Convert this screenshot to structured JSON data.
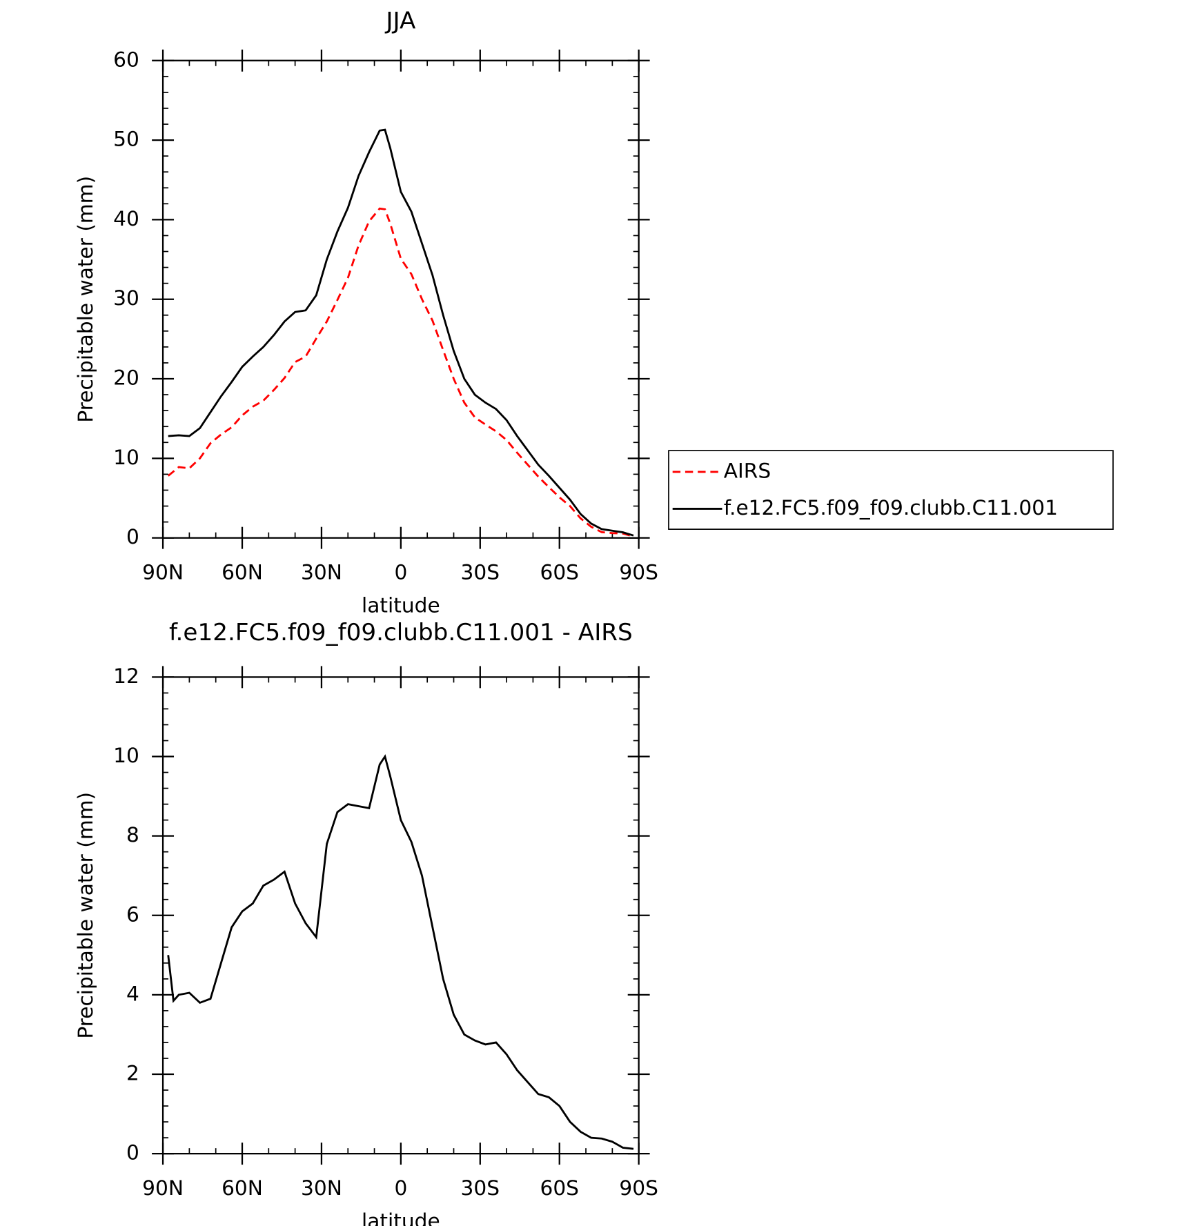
{
  "chart_data": [
    {
      "type": "line",
      "title": "JJA",
      "xlabel": "latitude",
      "ylabel": "Precipitable water (mm)",
      "x": [
        88,
        84,
        80,
        76,
        72,
        68,
        64,
        60,
        56,
        52,
        48,
        44,
        40,
        36,
        32,
        28,
        24,
        20,
        16,
        12,
        8,
        6,
        4,
        0,
        -4,
        -8,
        -12,
        -16,
        -20,
        -24,
        -28,
        -32,
        -36,
        -40,
        -44,
        -48,
        -52,
        -56,
        -60,
        -64,
        -68,
        -72,
        -76,
        -80,
        -84,
        -88
      ],
      "series": [
        {
          "name": "AIRS",
          "color": "#ff0000",
          "dash": true,
          "values": [
            7.8,
            8.9,
            8.75,
            10,
            11.9,
            13,
            13.9,
            15.4,
            16.5,
            17.25,
            18.6,
            20.1,
            22.1,
            22.8,
            25.05,
            27.2,
            29.9,
            32.7,
            36.75,
            39.8,
            41.4,
            41.3,
            39.5,
            35.1,
            33.15,
            30,
            27.3,
            23.6,
            20,
            17,
            15.15,
            14.25,
            13.4,
            12.3,
            10.7,
            9.2,
            7.7,
            6.38,
            5.1,
            4.0,
            2.45,
            1.4,
            0.72,
            0.6,
            0.55,
            0.18
          ]
        },
        {
          "name": "f.e12.FC5.f09_f09.clubb.C11.001",
          "color": "#000000",
          "dash": false,
          "values": [
            12.8,
            12.9,
            12.8,
            13.8,
            15.8,
            17.8,
            19.6,
            21.5,
            22.8,
            24,
            25.5,
            27.2,
            28.4,
            28.6,
            30.5,
            35,
            38.5,
            41.5,
            45.5,
            48.5,
            51.2,
            51.3,
            49,
            43.5,
            41,
            37,
            33,
            28,
            23.5,
            20,
            18,
            17,
            16.2,
            14.8,
            12.8,
            11,
            9.2,
            7.8,
            6.3,
            4.8,
            3,
            1.8,
            1.1,
            0.9,
            0.7,
            0.3
          ]
        }
      ],
      "xlim": [
        90,
        -90
      ],
      "ylim": [
        0,
        60
      ],
      "xticks": [
        {
          "value": 90,
          "label": "90N"
        },
        {
          "value": 60,
          "label": "60N"
        },
        {
          "value": 30,
          "label": "30N"
        },
        0,
        {
          "value": -30,
          "label": "30S"
        },
        {
          "value": -60,
          "label": "60S"
        },
        {
          "value": -90,
          "label": "90S"
        }
      ],
      "yticks": [
        0,
        10,
        20,
        30,
        40,
        50,
        60
      ],
      "legend": "right"
    },
    {
      "type": "line",
      "title": "f.e12.FC5.f09_f09.clubb.C11.001 - AIRS",
      "xlabel": "latitude",
      "ylabel": "Precipitable water (mm)",
      "x": [
        88,
        86,
        84,
        80,
        76,
        72,
        68,
        64,
        60,
        56,
        52,
        48,
        44,
        40,
        36,
        32,
        28,
        24,
        20,
        16,
        12,
        8,
        6,
        4,
        0,
        -4,
        -8,
        -12,
        -16,
        -20,
        -24,
        -28,
        -32,
        -36,
        -40,
        -44,
        -48,
        -52,
        -56,
        -60,
        -64,
        -68,
        -72,
        -76,
        -80,
        -84,
        -88
      ],
      "series": [
        {
          "name": null,
          "color": "#000000",
          "dash": false,
          "values": [
            5.0,
            3.85,
            4.0,
            4.05,
            3.8,
            3.9,
            4.8,
            5.7,
            6.1,
            6.3,
            6.75,
            6.9,
            7.1,
            6.3,
            5.8,
            5.45,
            7.8,
            8.6,
            8.8,
            8.75,
            8.7,
            9.8,
            10.0,
            9.5,
            8.4,
            7.85,
            7.0,
            5.7,
            4.4,
            3.5,
            3.0,
            2.85,
            2.75,
            2.8,
            2.5,
            2.1,
            1.8,
            1.5,
            1.42,
            1.2,
            0.8,
            0.55,
            0.4,
            0.38,
            0.3,
            0.15,
            0.12
          ]
        }
      ],
      "xlim": [
        90,
        -90
      ],
      "ylim": [
        0,
        12
      ],
      "xticks": [
        {
          "value": 90,
          "label": "90N"
        },
        {
          "value": 60,
          "label": "60N"
        },
        {
          "value": 30,
          "label": "30N"
        },
        0,
        {
          "value": -30,
          "label": "30S"
        },
        {
          "value": -60,
          "label": "60S"
        },
        {
          "value": -90,
          "label": "90S"
        }
      ],
      "yticks": [
        0,
        2,
        4,
        6,
        8,
        10,
        12
      ]
    }
  ]
}
